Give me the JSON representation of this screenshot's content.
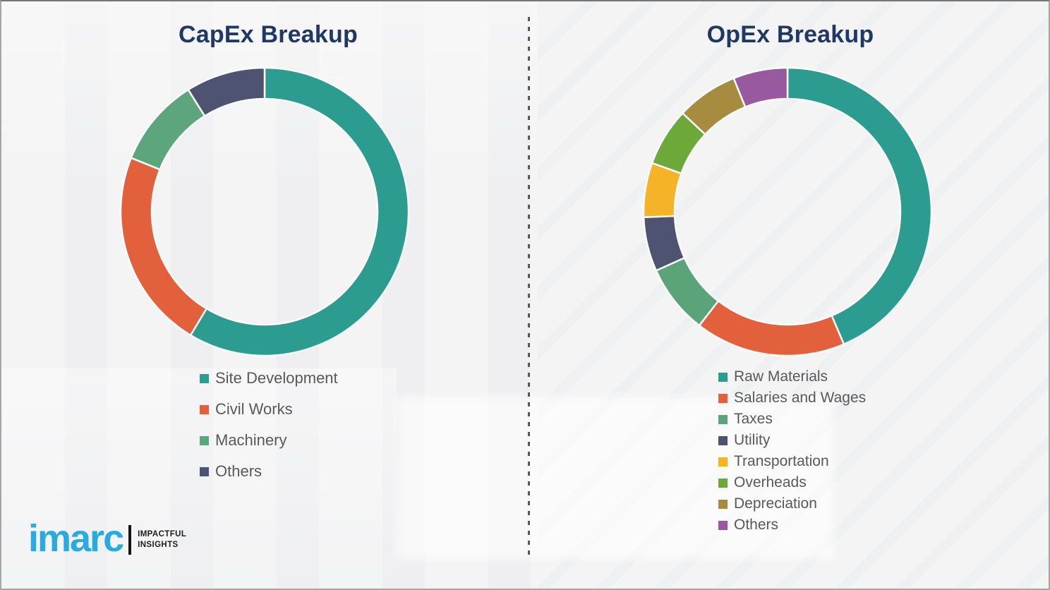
{
  "chart_data": [
    {
      "type": "pie",
      "subtype": "donut",
      "title": "CapEx Breakup",
      "legend_position": "bottom-left",
      "start_angle_deg": 0,
      "direction": "clockwise",
      "series": [
        {
          "name": "Site Development",
          "value": 58.6,
          "color": "#2D9C90"
        },
        {
          "name": "Civil Works",
          "value": 22.5,
          "color": "#E2603C"
        },
        {
          "name": "Machinery",
          "value": 10.0,
          "color": "#5CA57D"
        },
        {
          "name": "Others",
          "value": 8.9,
          "color": "#4D5370"
        }
      ]
    },
    {
      "type": "pie",
      "subtype": "donut",
      "title": "OpEx Breakup",
      "legend_position": "bottom-left",
      "start_angle_deg": 0,
      "direction": "clockwise",
      "series": [
        {
          "name": "Raw Materials",
          "value": 43.6,
          "color": "#2D9C90"
        },
        {
          "name": "Salaries and Wages",
          "value": 16.9,
          "color": "#E2603C"
        },
        {
          "name": "Taxes",
          "value": 7.8,
          "color": "#5BA47A"
        },
        {
          "name": "Utility",
          "value": 6.1,
          "color": "#4D5370"
        },
        {
          "name": "Transportation",
          "value": 6.1,
          "color": "#F5B427"
        },
        {
          "name": "Overheads",
          "value": 6.5,
          "color": "#6CA939"
        },
        {
          "name": "Depreciation",
          "value": 6.9,
          "color": "#A78B3F"
        },
        {
          "name": "Others",
          "value": 6.1,
          "color": "#99599F"
        }
      ]
    }
  ],
  "logo": {
    "brand": "imarc",
    "tagline_line1": "IMPACTFUL",
    "tagline_line2": "INSIGHTS",
    "brand_color": "#29ABE2"
  },
  "colors": {
    "title_text": "#1F3864",
    "legend_text": "#595959",
    "segment_gap": "#FAFBFB",
    "background": "#F2F2F3"
  }
}
